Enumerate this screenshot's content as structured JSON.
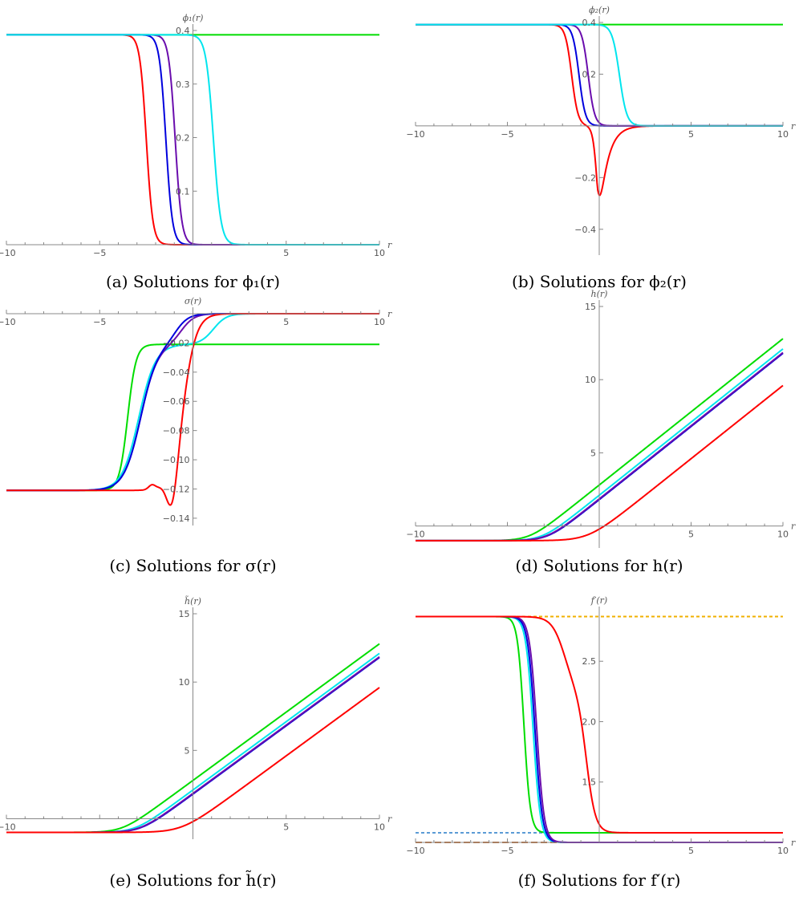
{
  "chart_data": [
    {
      "type": "line",
      "caption": "(a) Solutions for ϕ₁(r)",
      "xlabel": "r",
      "ylabel": "ϕ₁(r)",
      "xlim": [
        -10,
        10
      ],
      "ylim": [
        0,
        0.4
      ],
      "xticks": [
        -10,
        -5,
        5,
        10
      ],
      "yticks": [
        0.1,
        0.2,
        0.3,
        0.4
      ],
      "ytick_labels": [
        "0.1",
        "0.2",
        "0.3",
        "0.4"
      ],
      "series": [
        {
          "color": "#00dd00",
          "kind": "const",
          "value": 0.392
        },
        {
          "color": "#ff0000",
          "kind": "tanh",
          "a": 0.392,
          "b": 0.0,
          "c": -2.5,
          "w": 0.35
        },
        {
          "color": "#0000dd",
          "kind": "tanh",
          "a": 0.392,
          "b": 0.0,
          "c": -1.45,
          "w": 0.35
        },
        {
          "color": "#6a0dad",
          "kind": "tanh",
          "a": 0.392,
          "b": 0.0,
          "c": -0.95,
          "w": 0.35
        },
        {
          "color": "#00e5ee",
          "kind": "tanh",
          "a": 0.392,
          "b": 0.0,
          "c": 1.1,
          "w": 0.4
        }
      ]
    },
    {
      "type": "line",
      "caption": "(b) Solutions for ϕ₂(r)",
      "xlabel": "r",
      "ylabel": "ϕ₂(r)",
      "xlim": [
        -10,
        10
      ],
      "ylim": [
        -0.5,
        0.4
      ],
      "xticks": [
        -10,
        -5,
        5,
        10
      ],
      "yticks": [
        -0.4,
        -0.2,
        0.2,
        0.4
      ],
      "ytick_labels": [
        "-0.4",
        "-0.2",
        "0.2",
        "0.4"
      ],
      "series": [
        {
          "color": "#00dd00",
          "kind": "const",
          "value": 0.392
        },
        {
          "color": "#ff0000",
          "kind": "dip",
          "a": 0.392,
          "c1": -1.5,
          "w1": 0.35,
          "amp": -0.48,
          "c2": -0.1,
          "w2": 0.45
        },
        {
          "color": "#0000dd",
          "kind": "tanh",
          "a": 0.392,
          "b": 0.0,
          "c": -1.1,
          "w": 0.35
        },
        {
          "color": "#6a0dad",
          "kind": "tanh",
          "a": 0.392,
          "b": 0.0,
          "c": -0.6,
          "w": 0.35
        },
        {
          "color": "#00e5ee",
          "kind": "tanh",
          "a": 0.392,
          "b": 0.0,
          "c": 1.1,
          "w": 0.4
        }
      ]
    },
    {
      "type": "line",
      "caption": "(c) Solutions for σ(r)",
      "xlabel": "r",
      "ylabel": "σ(r)",
      "xlim": [
        -10,
        10
      ],
      "ylim": [
        -0.145,
        0.0
      ],
      "xticks": [
        -10,
        -5,
        5,
        10
      ],
      "yticks": [
        -0.02,
        -0.04,
        -0.06,
        -0.08,
        -0.1,
        -0.12,
        -0.14
      ],
      "ytick_labels": [
        "-0.02",
        "-0.04",
        "-0.06",
        "-0.08",
        "-0.10",
        "-0.12",
        "-0.14"
      ],
      "series": [
        {
          "color": "#00dd00",
          "kind": "tanh",
          "a": -0.121,
          "b": -0.021,
          "c": -3.5,
          "w": 0.45
        },
        {
          "color": "#00e5ee",
          "kind": "double",
          "a": -0.121,
          "m": -0.021,
          "b": 0.0,
          "c1": -2.9,
          "w1": 0.45,
          "c2": 1.1,
          "w2": 0.35
        },
        {
          "color": "#6a0dad",
          "kind": "double",
          "a": -0.121,
          "m": -0.021,
          "b": 0.0,
          "c1": -2.8,
          "w1": 0.45,
          "c2": -0.6,
          "w2": 0.35
        },
        {
          "color": "#0000dd",
          "kind": "double",
          "a": -0.121,
          "m": -0.021,
          "b": 0.0,
          "c1": -2.8,
          "w1": 0.45,
          "c2": -0.9,
          "w2": 0.35
        },
        {
          "color": "#ff0000",
          "kind": "sigmared",
          "a": -0.121,
          "b": 0.0,
          "c": -0.5,
          "w": 0.35
        }
      ]
    },
    {
      "type": "line",
      "caption": "(d) Solutions for h(r)",
      "xlabel": "r",
      "ylabel": "h(r)",
      "xlim": [
        -10,
        10
      ],
      "ylim": [
        -1.5,
        15
      ],
      "xticks": [
        -10,
        5,
        10
      ],
      "yticks": [
        5,
        10,
        15
      ],
      "ytick_labels": [
        "5",
        "10",
        "15"
      ],
      "series": [
        {
          "color": "#00dd00",
          "kind": "softplus",
          "base": -1.0,
          "slope": 1.0,
          "i": 3.8,
          "w": 0.5
        },
        {
          "color": "#00e5ee",
          "kind": "softplus",
          "base": -1.0,
          "slope": 1.0,
          "i": 3.1,
          "w": 0.5
        },
        {
          "color": "#0000dd",
          "kind": "softplus",
          "base": -1.0,
          "slope": 1.0,
          "i": 2.8,
          "w": 0.5
        },
        {
          "color": "#6a0dad",
          "kind": "softplus",
          "base": -1.0,
          "slope": 1.0,
          "i": 2.85,
          "w": 0.5
        },
        {
          "color": "#ff0000",
          "kind": "softplus",
          "base": -1.0,
          "slope": 1.0,
          "i": 0.6,
          "w": 0.6
        }
      ]
    },
    {
      "type": "line",
      "caption": "(e) Solutions for h̃(r)",
      "xlabel": "r",
      "ylabel": "h̃(r)",
      "xlim": [
        -10,
        10
      ],
      "ylim": [
        -1.5,
        15
      ],
      "xticks": [
        -10,
        5,
        10
      ],
      "yticks": [
        5,
        10,
        15
      ],
      "ytick_labels": [
        "5",
        "10",
        "15"
      ],
      "series": [
        {
          "color": "#00dd00",
          "kind": "softplus",
          "base": -1.0,
          "slope": 1.0,
          "i": 3.8,
          "w": 0.5
        },
        {
          "color": "#00e5ee",
          "kind": "softplus",
          "base": -1.0,
          "slope": 1.0,
          "i": 3.1,
          "w": 0.5
        },
        {
          "color": "#0000dd",
          "kind": "softplus",
          "base": -1.0,
          "slope": 1.0,
          "i": 2.8,
          "w": 0.5
        },
        {
          "color": "#6a0dad",
          "kind": "softplus",
          "base": -1.0,
          "slope": 1.0,
          "i": 2.85,
          "w": 0.5
        },
        {
          "color": "#ff0000",
          "kind": "softplus",
          "base": -1.0,
          "slope": 1.0,
          "i": 0.6,
          "w": 0.6
        }
      ]
    },
    {
      "type": "line",
      "caption": "(f) Solutions for f′(r)",
      "xlabel": "r",
      "ylabel": "f′(r)",
      "xlim": [
        -10,
        10
      ],
      "ylim": [
        1.0,
        2.9
      ],
      "xticks": [
        -10,
        -5,
        5,
        10
      ],
      "yticks": [
        1.5,
        2.0,
        2.5
      ],
      "ytick_labels": [
        "1.5",
        "2.0",
        "2.5"
      ],
      "series": [
        {
          "color": "#f0b000",
          "kind": "const",
          "value": 2.87,
          "dash": "4 3"
        },
        {
          "color": "#5b9bd5",
          "kind": "const",
          "value": 1.08,
          "dash": "4 3"
        },
        {
          "color": "#c8733a",
          "kind": "const",
          "value": 1.0,
          "dash": "8 4"
        },
        {
          "color": "#00dd00",
          "kind": "tanh",
          "a": 2.87,
          "b": 1.08,
          "c": -4.1,
          "w": 0.35
        },
        {
          "color": "#00e5ee",
          "kind": "tanh",
          "a": 2.87,
          "b": 1.0,
          "c": -3.6,
          "w": 0.4
        },
        {
          "color": "#0000dd",
          "kind": "tanh",
          "a": 2.87,
          "b": 1.0,
          "c": -3.5,
          "w": 0.4
        },
        {
          "color": "#6a0dad",
          "kind": "tanh",
          "a": 2.87,
          "b": 1.0,
          "c": -3.4,
          "w": 0.4
        },
        {
          "color": "#ff0000",
          "kind": "redf",
          "a": 2.87,
          "b": 1.08
        }
      ]
    }
  ]
}
